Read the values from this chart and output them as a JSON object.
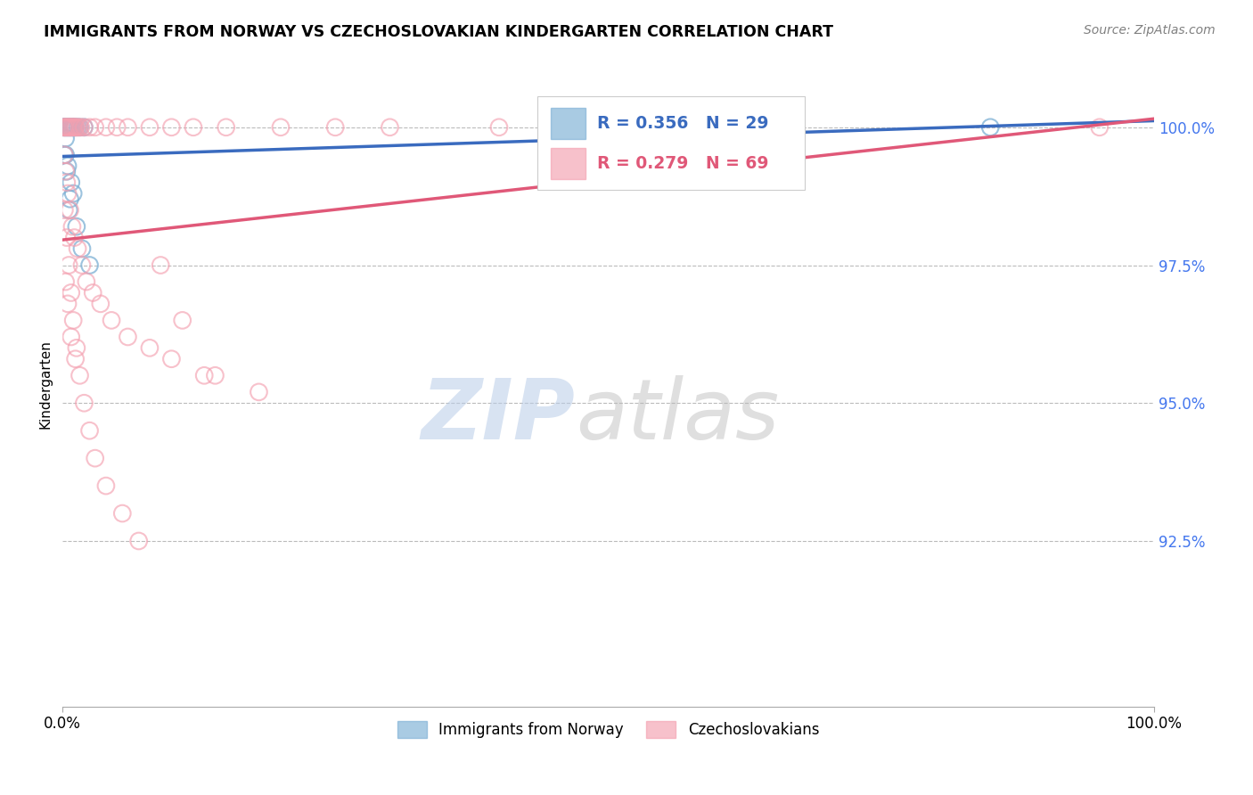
{
  "title": "IMMIGRANTS FROM NORWAY VS CZECHOSLOVAKIAN KINDERGARTEN CORRELATION CHART",
  "source_text": "Source: ZipAtlas.com",
  "xlabel": "",
  "ylabel": "Kindergarten",
  "xlim": [
    0.0,
    100.0
  ],
  "ylim": [
    89.5,
    101.2
  ],
  "yticks": [
    92.5,
    95.0,
    97.5,
    100.0
  ],
  "ytick_labels": [
    "92.5%",
    "95.0%",
    "97.5%",
    "100.0%"
  ],
  "xticks": [
    0.0,
    100.0
  ],
  "xtick_labels": [
    "0.0%",
    "100.0%"
  ],
  "grid_color": "#bbbbbb",
  "background_color": "#ffffff",
  "blue_color": "#7bafd4",
  "pink_color": "#f4a0b0",
  "blue_line_color": "#3a6bbf",
  "pink_line_color": "#e05878",
  "legend_r_blue": "R = 0.356",
  "legend_n_blue": "N = 29",
  "legend_r_pink": "R = 0.279",
  "legend_n_pink": "N = 69",
  "legend_label_blue": "Immigrants from Norway",
  "legend_label_pink": "Czechoslovakians",
  "blue_points_x": [
    0.1,
    0.2,
    0.3,
    0.4,
    0.5,
    0.6,
    0.7,
    0.8,
    0.9,
    1.0,
    1.1,
    1.2,
    1.4,
    1.6,
    2.0,
    0.2,
    0.3,
    0.5,
    0.8,
    1.0,
    0.4,
    0.6,
    1.3,
    1.8,
    2.5,
    0.3,
    0.7,
    65.0,
    85.0
  ],
  "blue_points_y": [
    100.0,
    100.0,
    100.0,
    100.0,
    100.0,
    100.0,
    100.0,
    100.0,
    100.0,
    100.0,
    100.0,
    100.0,
    100.0,
    100.0,
    100.0,
    99.5,
    99.5,
    99.3,
    99.0,
    98.8,
    99.2,
    98.5,
    98.2,
    97.8,
    97.5,
    99.8,
    98.7,
    100.0,
    100.0
  ],
  "pink_points_x": [
    0.1,
    0.2,
    0.3,
    0.4,
    0.5,
    0.6,
    0.7,
    0.8,
    0.9,
    1.0,
    1.1,
    1.2,
    1.3,
    1.5,
    1.7,
    2.0,
    2.5,
    3.0,
    4.0,
    5.0,
    6.0,
    8.0,
    10.0,
    12.0,
    15.0,
    20.0,
    25.0,
    30.0,
    40.0,
    50.0,
    0.2,
    0.3,
    0.4,
    0.5,
    0.7,
    0.9,
    1.1,
    1.4,
    1.8,
    2.2,
    2.8,
    3.5,
    4.5,
    6.0,
    8.0,
    10.0,
    13.0,
    18.0,
    0.2,
    0.4,
    0.6,
    0.8,
    1.0,
    1.3,
    1.6,
    2.0,
    2.5,
    3.0,
    4.0,
    5.5,
    7.0,
    9.0,
    11.0,
    14.0,
    0.3,
    0.5,
    0.8,
    1.2,
    95.0
  ],
  "pink_points_y": [
    100.0,
    100.0,
    100.0,
    100.0,
    100.0,
    100.0,
    100.0,
    100.0,
    100.0,
    100.0,
    100.0,
    100.0,
    100.0,
    100.0,
    100.0,
    100.0,
    100.0,
    100.0,
    100.0,
    100.0,
    100.0,
    100.0,
    100.0,
    100.0,
    100.0,
    100.0,
    100.0,
    100.0,
    100.0,
    100.0,
    99.5,
    99.2,
    99.0,
    98.8,
    98.5,
    98.2,
    98.0,
    97.8,
    97.5,
    97.2,
    97.0,
    96.8,
    96.5,
    96.2,
    96.0,
    95.8,
    95.5,
    95.2,
    98.5,
    98.0,
    97.5,
    97.0,
    96.5,
    96.0,
    95.5,
    95.0,
    94.5,
    94.0,
    93.5,
    93.0,
    92.5,
    97.5,
    96.5,
    95.5,
    97.2,
    96.8,
    96.2,
    95.8,
    100.0
  ]
}
